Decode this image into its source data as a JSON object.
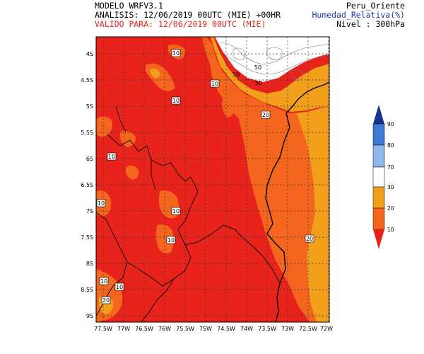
{
  "header": {
    "model": "MODELO WRFV3.1",
    "analysis": "ANALISIS: 12/06/2019 00UTC (MIE) +00HR",
    "valid": "VALIDO PARA: 12/06/2019 00UTC (MIE)",
    "region": "Peru_Oriente",
    "variable": "Humedad_Relativa(%)",
    "level": "Nivel : 300hPa"
  },
  "colors": {
    "text": "#000000",
    "valid_text": "#e8231c",
    "variable_text": "#1f3aa8",
    "fill_lt10": "#e8231c",
    "fill_10_20": "#f4651d",
    "fill_20_30": "#f2a01c",
    "fill_70_80": "#8fb9ec",
    "fill_80_90": "#3e79d4",
    "fill_gt90": "#13338f"
  },
  "colorbar": {
    "tick_labels": [
      "90",
      "80",
      "70",
      "30",
      "20",
      "10"
    ]
  },
  "lat_labels": [
    "4S",
    "4.5S",
    "5S",
    "5.5S",
    "6S",
    "6.5S",
    "7S",
    "7.5S",
    "8S",
    "8.5S",
    "9S"
  ],
  "lon_labels": [
    "77.5W",
    "77W",
    "76.5W",
    "76W",
    "75.5W",
    "75W",
    "74.5W",
    "74W",
    "73.5W",
    "73W",
    "72.5W",
    "72W"
  ],
  "contour_labels": [
    "10",
    "10",
    "10",
    "10",
    "10",
    "10",
    "10",
    "10",
    "10",
    "20",
    "20",
    "20",
    "50",
    "50",
    "50"
  ]
}
